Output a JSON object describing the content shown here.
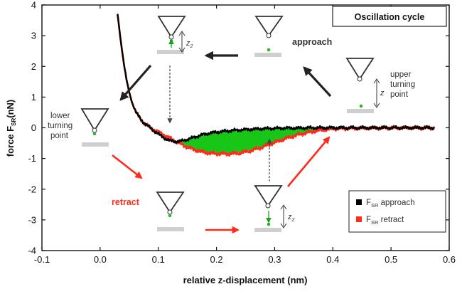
{
  "chart_data": {
    "type": "line",
    "title": "Oscillation cycle",
    "xlabel": "relative z-displacement (nm)",
    "ylabel": "force F",
    "ylabel_sub": "SR",
    "ylabel_unit": "(nN)",
    "xlim": [
      -0.1,
      0.6
    ],
    "ylim": [
      -4,
      4
    ],
    "xticks": [
      "-0.1",
      "0.0",
      "0.1",
      "0.2",
      "0.3",
      "0.4",
      "0.5",
      "0.6"
    ],
    "xtick_values": [
      -0.1,
      0.0,
      0.1,
      0.2,
      0.3,
      0.4,
      0.5,
      0.6
    ],
    "yticks": [
      "-4",
      "-3",
      "-2",
      "-1",
      "0",
      "1",
      "2",
      "3",
      "4"
    ],
    "ytick_values": [
      -4,
      -3,
      -2,
      -1,
      0,
      1,
      2,
      3,
      4
    ],
    "series": [
      {
        "name": "approach",
        "label_main": "F",
        "label_sub": "SR",
        "label_rest": " approach",
        "color": "#000000",
        "x": [
          0.03,
          0.035,
          0.04,
          0.045,
          0.05,
          0.055,
          0.06,
          0.065,
          0.07,
          0.075,
          0.08,
          0.085,
          0.09,
          0.095,
          0.1,
          0.105,
          0.11,
          0.115,
          0.12,
          0.125,
          0.13,
          0.14,
          0.15,
          0.16,
          0.17,
          0.18,
          0.19,
          0.2,
          0.22,
          0.24,
          0.26,
          0.28,
          0.3,
          0.32,
          0.34,
          0.36,
          0.4,
          0.45,
          0.5,
          0.55,
          0.575
        ],
        "y": [
          3.7,
          2.9,
          2.2,
          1.6,
          1.15,
          0.82,
          0.58,
          0.4,
          0.27,
          0.17,
          0.09,
          0.01,
          -0.06,
          -0.13,
          -0.2,
          -0.27,
          -0.33,
          -0.38,
          -0.42,
          -0.44,
          -0.45,
          -0.43,
          -0.38,
          -0.32,
          -0.26,
          -0.21,
          -0.17,
          -0.14,
          -0.1,
          -0.07,
          -0.05,
          -0.03,
          -0.02,
          -0.01,
          -0.01,
          0.0,
          0.0,
          0.0,
          0.0,
          0.0,
          0.0
        ]
      },
      {
        "name": "retract",
        "label_main": "F",
        "label_sub": "SR",
        "label_rest": " retract",
        "color": "#ff2a1a",
        "x": [
          0.03,
          0.035,
          0.04,
          0.045,
          0.05,
          0.055,
          0.06,
          0.065,
          0.07,
          0.075,
          0.08,
          0.085,
          0.09,
          0.095,
          0.1,
          0.11,
          0.12,
          0.13,
          0.14,
          0.15,
          0.16,
          0.17,
          0.18,
          0.19,
          0.2,
          0.22,
          0.24,
          0.26,
          0.28,
          0.3,
          0.32,
          0.34,
          0.36,
          0.38,
          0.4,
          0.45,
          0.5,
          0.55,
          0.575
        ],
        "y": [
          3.7,
          2.9,
          2.2,
          1.6,
          1.15,
          0.82,
          0.58,
          0.4,
          0.27,
          0.17,
          0.09,
          0.02,
          -0.04,
          -0.09,
          -0.14,
          -0.24,
          -0.34,
          -0.44,
          -0.54,
          -0.63,
          -0.7,
          -0.76,
          -0.8,
          -0.83,
          -0.84,
          -0.85,
          -0.82,
          -0.74,
          -0.62,
          -0.48,
          -0.34,
          -0.23,
          -0.14,
          -0.07,
          -0.03,
          -0.01,
          0.0,
          0.0,
          0.0
        ]
      }
    ],
    "legend_position": "bottom-right",
    "hysteresis_fill_color": "#17c617",
    "annotations": [
      {
        "id": "approach",
        "text": "approach",
        "color": "#333333"
      },
      {
        "id": "upper",
        "text": "upper turning point",
        "color": "#333333"
      },
      {
        "id": "lower",
        "text": "lower turning point",
        "color": "#333333"
      },
      {
        "id": "retract",
        "text": "retract",
        "color": "#ff2a1a"
      },
      {
        "id": "z",
        "text": "z"
      },
      {
        "id": "z1",
        "text": "z",
        "sub": "1"
      },
      {
        "id": "z2",
        "text": "z",
        "sub": "2"
      }
    ]
  },
  "labels": {
    "upper_line1": "upper",
    "upper_line2": "turning",
    "upper_line3": "point",
    "lower_line1": "lower",
    "lower_line2": "turning",
    "lower_line3": "point"
  }
}
